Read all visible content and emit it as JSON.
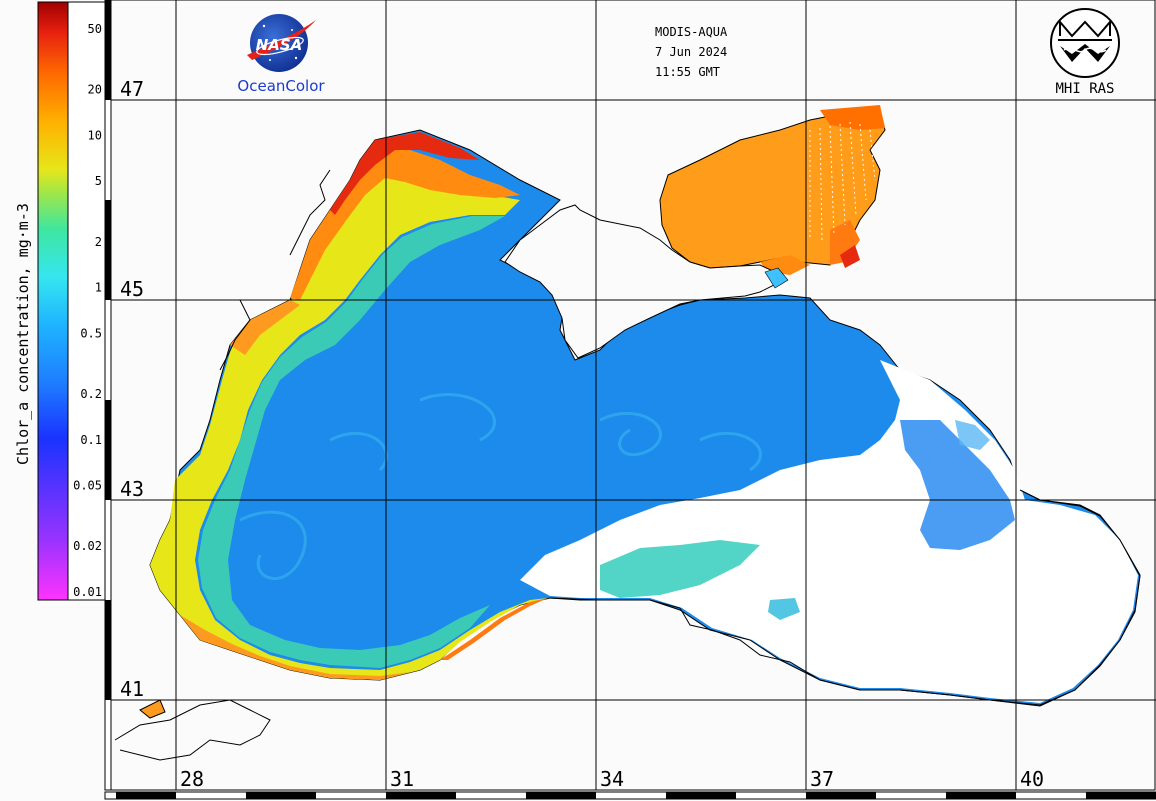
{
  "header": {
    "sensor": "MODIS-AQUA",
    "date": "7 Jun 2024",
    "time": "11:55 GMT"
  },
  "logos": {
    "left_mark": "NASA",
    "left_caption": "OceanColor",
    "right_caption": "MHI RAS"
  },
  "colorbar": {
    "title": "Chlor_a concentration, mg·m-3",
    "scale": "log",
    "range": [
      0.01,
      60
    ],
    "ticks": [
      "50",
      "20",
      "10",
      "5",
      "2",
      "1",
      "0.5",
      "0.2",
      "0.1",
      "0.05",
      "0.02",
      "0.01"
    ],
    "tick_values": [
      50,
      20,
      10,
      5,
      2,
      1,
      0.5,
      0.2,
      0.1,
      0.05,
      0.02,
      0.01
    ],
    "colors": [
      "#ff33ff",
      "#9933ff",
      "#1a33ff",
      "#1e7bff",
      "#1eb4ff",
      "#35e6f0",
      "#3fe6a0",
      "#9fe64a",
      "#e6e619",
      "#ffb000",
      "#ff6a00",
      "#e62010",
      "#a00000"
    ]
  },
  "map": {
    "lat_labels": [
      "47",
      "45",
      "43",
      "41"
    ],
    "lon_labels": [
      "28",
      "31",
      "34",
      "37",
      "40"
    ],
    "land_color": "#ffffff",
    "coast_color": "#000000",
    "grid_color": "#000000"
  }
}
